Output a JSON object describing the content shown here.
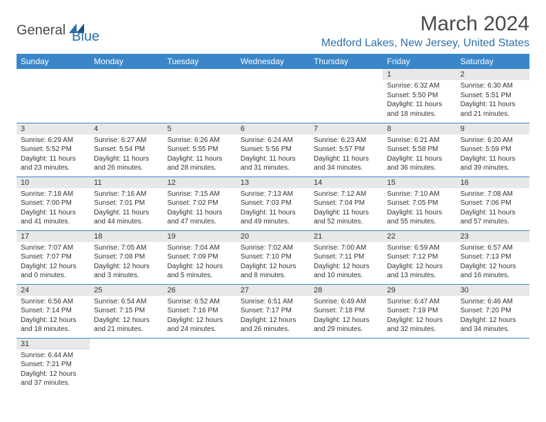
{
  "logo": {
    "part1": "General",
    "part2": "Blue"
  },
  "title": "March 2024",
  "location": "Medford Lakes, New Jersey, United States",
  "colors": {
    "header_bg": "#3a86c8",
    "header_text": "#ffffff",
    "daynum_bg": "#e8e8e8",
    "border": "#3a86c8",
    "title_color": "#4a4a4a",
    "location_color": "#2b6fab"
  },
  "weekdays": [
    "Sunday",
    "Monday",
    "Tuesday",
    "Wednesday",
    "Thursday",
    "Friday",
    "Saturday"
  ],
  "weeks": [
    [
      null,
      null,
      null,
      null,
      null,
      {
        "n": "1",
        "sr": "6:32 AM",
        "ss": "5:50 PM",
        "dl": "11 hours and 18 minutes."
      },
      {
        "n": "2",
        "sr": "6:30 AM",
        "ss": "5:51 PM",
        "dl": "11 hours and 21 minutes."
      }
    ],
    [
      {
        "n": "3",
        "sr": "6:29 AM",
        "ss": "5:52 PM",
        "dl": "11 hours and 23 minutes."
      },
      {
        "n": "4",
        "sr": "6:27 AM",
        "ss": "5:54 PM",
        "dl": "11 hours and 26 minutes."
      },
      {
        "n": "5",
        "sr": "6:26 AM",
        "ss": "5:55 PM",
        "dl": "11 hours and 28 minutes."
      },
      {
        "n": "6",
        "sr": "6:24 AM",
        "ss": "5:56 PM",
        "dl": "11 hours and 31 minutes."
      },
      {
        "n": "7",
        "sr": "6:23 AM",
        "ss": "5:57 PM",
        "dl": "11 hours and 34 minutes."
      },
      {
        "n": "8",
        "sr": "6:21 AM",
        "ss": "5:58 PM",
        "dl": "11 hours and 36 minutes."
      },
      {
        "n": "9",
        "sr": "6:20 AM",
        "ss": "5:59 PM",
        "dl": "11 hours and 39 minutes."
      }
    ],
    [
      {
        "n": "10",
        "sr": "7:18 AM",
        "ss": "7:00 PM",
        "dl": "11 hours and 41 minutes."
      },
      {
        "n": "11",
        "sr": "7:16 AM",
        "ss": "7:01 PM",
        "dl": "11 hours and 44 minutes."
      },
      {
        "n": "12",
        "sr": "7:15 AM",
        "ss": "7:02 PM",
        "dl": "11 hours and 47 minutes."
      },
      {
        "n": "13",
        "sr": "7:13 AM",
        "ss": "7:03 PM",
        "dl": "11 hours and 49 minutes."
      },
      {
        "n": "14",
        "sr": "7:12 AM",
        "ss": "7:04 PM",
        "dl": "11 hours and 52 minutes."
      },
      {
        "n": "15",
        "sr": "7:10 AM",
        "ss": "7:05 PM",
        "dl": "11 hours and 55 minutes."
      },
      {
        "n": "16",
        "sr": "7:08 AM",
        "ss": "7:06 PM",
        "dl": "11 hours and 57 minutes."
      }
    ],
    [
      {
        "n": "17",
        "sr": "7:07 AM",
        "ss": "7:07 PM",
        "dl": "12 hours and 0 minutes."
      },
      {
        "n": "18",
        "sr": "7:05 AM",
        "ss": "7:08 PM",
        "dl": "12 hours and 3 minutes."
      },
      {
        "n": "19",
        "sr": "7:04 AM",
        "ss": "7:09 PM",
        "dl": "12 hours and 5 minutes."
      },
      {
        "n": "20",
        "sr": "7:02 AM",
        "ss": "7:10 PM",
        "dl": "12 hours and 8 minutes."
      },
      {
        "n": "21",
        "sr": "7:00 AM",
        "ss": "7:11 PM",
        "dl": "12 hours and 10 minutes."
      },
      {
        "n": "22",
        "sr": "6:59 AM",
        "ss": "7:12 PM",
        "dl": "12 hours and 13 minutes."
      },
      {
        "n": "23",
        "sr": "6:57 AM",
        "ss": "7:13 PM",
        "dl": "12 hours and 16 minutes."
      }
    ],
    [
      {
        "n": "24",
        "sr": "6:56 AM",
        "ss": "7:14 PM",
        "dl": "12 hours and 18 minutes."
      },
      {
        "n": "25",
        "sr": "6:54 AM",
        "ss": "7:15 PM",
        "dl": "12 hours and 21 minutes."
      },
      {
        "n": "26",
        "sr": "6:52 AM",
        "ss": "7:16 PM",
        "dl": "12 hours and 24 minutes."
      },
      {
        "n": "27",
        "sr": "6:51 AM",
        "ss": "7:17 PM",
        "dl": "12 hours and 26 minutes."
      },
      {
        "n": "28",
        "sr": "6:49 AM",
        "ss": "7:18 PM",
        "dl": "12 hours and 29 minutes."
      },
      {
        "n": "29",
        "sr": "6:47 AM",
        "ss": "7:19 PM",
        "dl": "12 hours and 32 minutes."
      },
      {
        "n": "30",
        "sr": "6:46 AM",
        "ss": "7:20 PM",
        "dl": "12 hours and 34 minutes."
      }
    ],
    [
      {
        "n": "31",
        "sr": "6:44 AM",
        "ss": "7:21 PM",
        "dl": "12 hours and 37 minutes."
      },
      null,
      null,
      null,
      null,
      null,
      null
    ]
  ]
}
